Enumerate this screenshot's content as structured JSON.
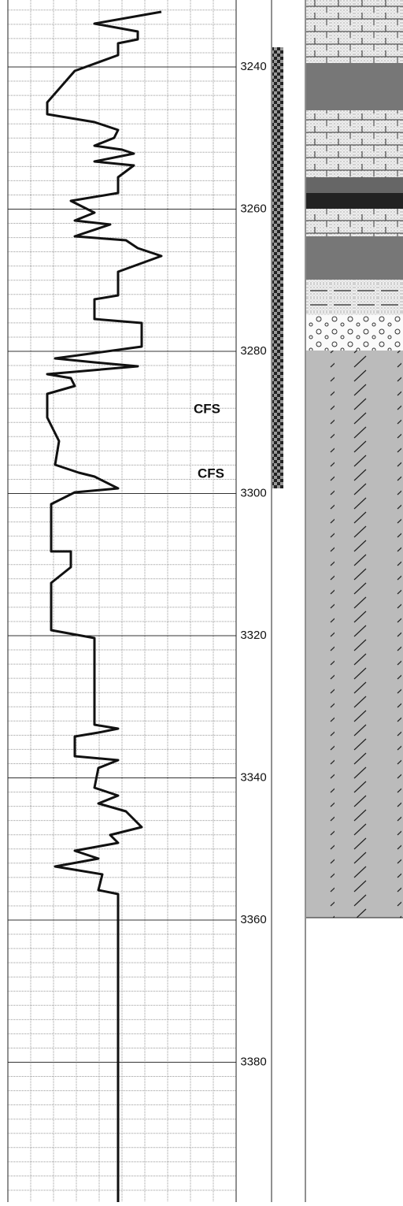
{
  "depth_labels": [
    "3240",
    "3260",
    "3280",
    "3300",
    "3320",
    "3340",
    "3360",
    "3380"
  ],
  "annotations": [
    "CFS",
    "CFS"
  ]
}
